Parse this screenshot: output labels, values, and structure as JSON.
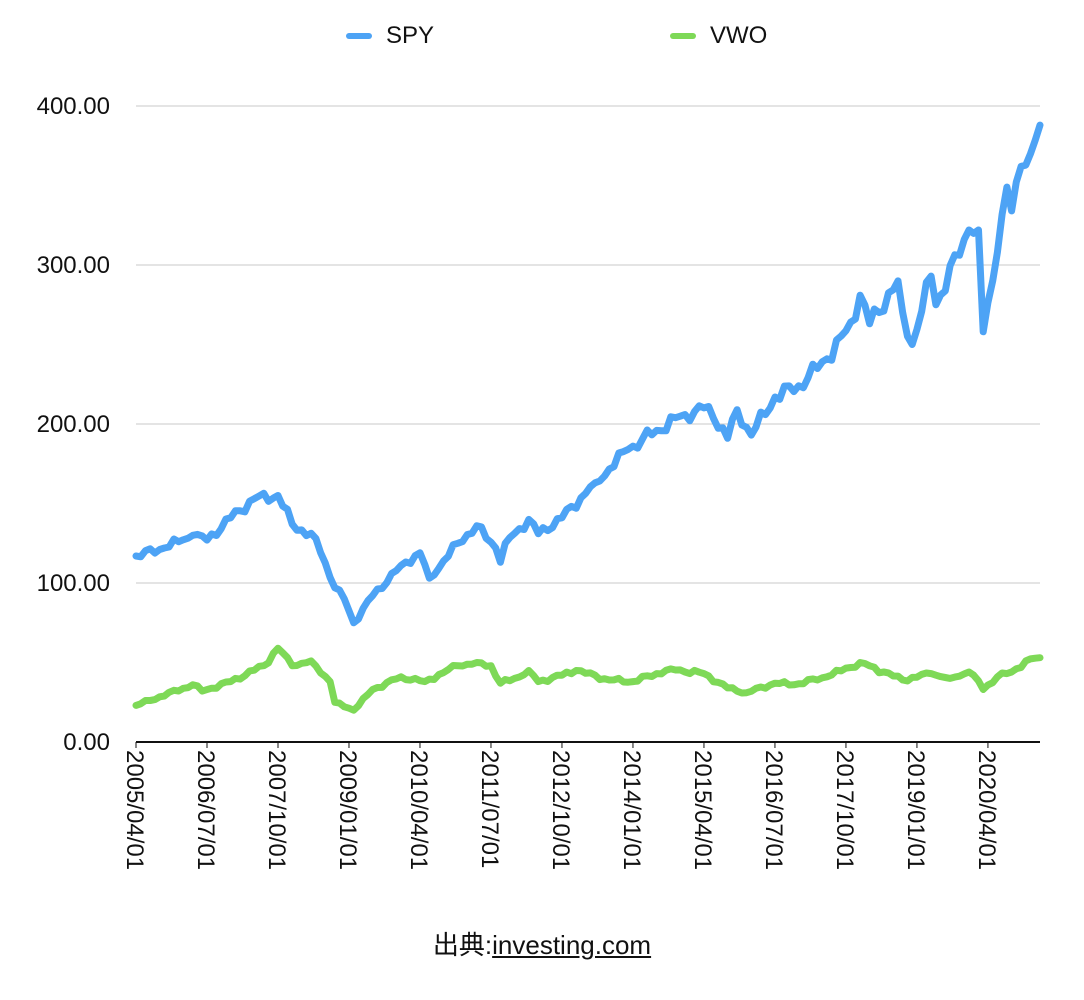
{
  "chart_data": {
    "type": "line",
    "title": "",
    "xlabel": "",
    "ylabel": "",
    "ylim": [
      0,
      400
    ],
    "yticks": [
      "0.00",
      "100.00",
      "200.00",
      "300.00",
      "400.00"
    ],
    "grid": true,
    "legend_placement": "top-center",
    "x_start": "2005/04/01",
    "x_frequency": "monthly",
    "xtick_labels": [
      "2005/04/01",
      "2006/07/01",
      "2007/10/01",
      "2009/01/01",
      "2010/04/01",
      "2011/07/01",
      "2012/10/01",
      "2014/01/01",
      "2015/04/01",
      "2016/07/01",
      "2017/10/01",
      "2019/01/01",
      "2020/04/01"
    ],
    "series": [
      {
        "name": "SPY",
        "color": "#4da3f5",
        "anchors": [
          [
            "2005/04/01",
            117
          ],
          [
            "2005/10/01",
            122
          ],
          [
            "2006/04/01",
            130
          ],
          [
            "2006/07/01",
            127
          ],
          [
            "2006/12/01",
            141
          ],
          [
            "2007/05/01",
            153
          ],
          [
            "2007/10/01",
            155
          ],
          [
            "2008/01/01",
            137
          ],
          [
            "2008/06/01",
            128
          ],
          [
            "2008/10/01",
            97
          ],
          [
            "2008/12/01",
            90
          ],
          [
            "2009/02/01",
            75
          ],
          [
            "2009/06/01",
            92
          ],
          [
            "2009/12/01",
            111
          ],
          [
            "2010/04/01",
            119
          ],
          [
            "2010/06/01",
            103
          ],
          [
            "2010/12/01",
            125
          ],
          [
            "2011/04/01",
            136
          ],
          [
            "2011/08/01",
            122
          ],
          [
            "2011/09/01",
            113
          ],
          [
            "2011/10/01",
            125
          ],
          [
            "2012/03/01",
            140
          ],
          [
            "2012/05/01",
            131
          ],
          [
            "2012/10/01",
            141
          ],
          [
            "2013/05/01",
            163
          ],
          [
            "2013/12/01",
            184
          ],
          [
            "2014/06/01",
            196
          ],
          [
            "2014/12/01",
            206
          ],
          [
            "2015/05/01",
            211
          ],
          [
            "2015/09/01",
            191
          ],
          [
            "2015/11/01",
            209
          ],
          [
            "2016/02/01",
            193
          ],
          [
            "2016/07/01",
            217
          ],
          [
            "2016/12/01",
            224
          ],
          [
            "2017/06/01",
            241
          ],
          [
            "2017/12/01",
            266
          ],
          [
            "2018/01/01",
            281
          ],
          [
            "2018/03/01",
            263
          ],
          [
            "2018/09/01",
            290
          ],
          [
            "2018/10/01",
            270
          ],
          [
            "2018/12/01",
            250
          ],
          [
            "2019/04/01",
            293
          ],
          [
            "2019/05/01",
            275
          ],
          [
            "2019/12/01",
            322
          ],
          [
            "2020/02/01",
            322
          ],
          [
            "2020/03/01",
            258
          ],
          [
            "2020/06/01",
            308
          ],
          [
            "2020/08/01",
            349
          ],
          [
            "2020/09/01",
            334
          ],
          [
            "2020/11/01",
            362
          ],
          [
            "2021/01/01",
            370
          ],
          [
            "2021/03/01",
            388
          ]
        ]
      },
      {
        "name": "VWO",
        "color": "#7ed957",
        "anchors": [
          [
            "2005/04/01",
            23
          ],
          [
            "2006/04/01",
            36
          ],
          [
            "2006/06/01",
            32
          ],
          [
            "2006/12/01",
            38
          ],
          [
            "2007/07/01",
            48
          ],
          [
            "2007/10/01",
            59
          ],
          [
            "2008/01/01",
            48
          ],
          [
            "2008/05/01",
            51
          ],
          [
            "2008/09/01",
            38
          ],
          [
            "2008/10/01",
            25
          ],
          [
            "2009/02/01",
            20
          ],
          [
            "2009/06/01",
            33
          ],
          [
            "2009/12/01",
            41
          ],
          [
            "2010/05/01",
            38
          ],
          [
            "2010/12/01",
            48
          ],
          [
            "2011/04/01",
            50
          ],
          [
            "2011/07/01",
            48
          ],
          [
            "2011/09/01",
            37
          ],
          [
            "2011/12/01",
            40
          ],
          [
            "2012/03/01",
            45
          ],
          [
            "2012/05/01",
            38
          ],
          [
            "2012/10/01",
            42
          ],
          [
            "2013/01/01",
            45
          ],
          [
            "2013/08/01",
            39
          ],
          [
            "2014/01/01",
            38
          ],
          [
            "2014/09/01",
            46
          ],
          [
            "2015/04/01",
            43
          ],
          [
            "2015/09/01",
            34
          ],
          [
            "2016/01/01",
            31
          ],
          [
            "2016/07/01",
            37
          ],
          [
            "2016/11/01",
            36
          ],
          [
            "2017/06/01",
            41
          ],
          [
            "2018/01/01",
            50
          ],
          [
            "2018/06/01",
            44
          ],
          [
            "2018/10/01",
            39
          ],
          [
            "2019/04/01",
            43
          ],
          [
            "2019/08/01",
            40
          ],
          [
            "2019/12/01",
            44
          ],
          [
            "2020/01/01",
            42
          ],
          [
            "2020/03/01",
            33
          ],
          [
            "2020/06/01",
            41
          ],
          [
            "2020/09/01",
            44
          ],
          [
            "2020/12/01",
            51
          ],
          [
            "2021/03/01",
            53
          ]
        ]
      }
    ]
  },
  "source": {
    "prefix": "出典:",
    "link_text": "investing.com"
  }
}
